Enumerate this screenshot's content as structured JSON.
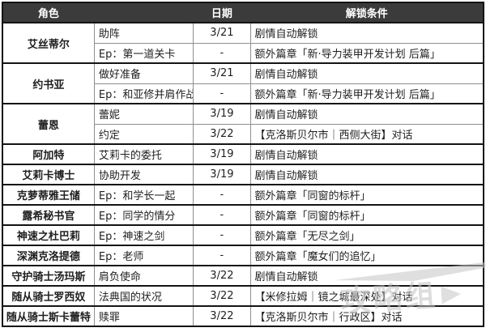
{
  "colors": {
    "header_bg": "#3b3b3b",
    "header_text": "#ffffff",
    "border_dark": "#141414",
    "border_light": "#8f8f8f",
    "cell_text": "#1f1f1f",
    "watermark_gray": "#c6c6c6"
  },
  "watermark": {
    "text": "攻略组"
  },
  "table": {
    "headers": [
      "角色",
      "",
      "日期",
      "解锁条件"
    ],
    "groups": [
      {
        "character": "艾丝蒂尔",
        "rows": [
          {
            "task": "助阵",
            "date": "3/21",
            "condition": "剧情自动解锁"
          },
          {
            "task": "Ep：第一道关卡",
            "date": "-",
            "condition": "额外篇章「新·导力装甲开发计划 后篇」"
          }
        ]
      },
      {
        "character": "约书亚",
        "rows": [
          {
            "task": "做好准备",
            "date": "3/21",
            "condition": "剧情自动解锁"
          },
          {
            "task": "Ep：和亚修并肩作战",
            "date": "-",
            "condition": "额外篇章「新·导力装甲开发计划 后篇」"
          }
        ]
      },
      {
        "character": "蕾恩",
        "rows": [
          {
            "task": "蕾妮",
            "date": "3/19",
            "condition": "剧情自动解锁"
          },
          {
            "task": "约定",
            "date": "3/22",
            "condition": "【克洛斯贝尔市｜西侧大街】对话"
          }
        ]
      },
      {
        "character": "阿加特",
        "rows": [
          {
            "task": "艾莉卡的委托",
            "date": "3/19",
            "condition": "剧情自动解锁"
          }
        ]
      },
      {
        "character": "艾莉卡博士",
        "rows": [
          {
            "task": "协助开发",
            "date": "3/19",
            "condition": "剧情自动解锁"
          }
        ]
      },
      {
        "character": "克萝蒂雅王储",
        "rows": [
          {
            "task": "Ep：和学长一起",
            "date": "-",
            "condition": "额外篇章「同窗的标杆」"
          }
        ]
      },
      {
        "character": "露希秘书官",
        "rows": [
          {
            "task": "Ep：同学的情分",
            "date": "-",
            "condition": "额外篇章「同窗的标杆」"
          }
        ]
      },
      {
        "character": "神速之杜巴莉",
        "rows": [
          {
            "task": "Ep：神速之剑",
            "date": "-",
            "condition": "额外篇章「无尽之剑」"
          }
        ]
      },
      {
        "character": "深渊克洛提德",
        "rows": [
          {
            "task": "Ep：老师",
            "date": "-",
            "condition": "额外篇章「魔女们的追忆」"
          }
        ]
      },
      {
        "character": "守护骑士汤玛斯",
        "rows": [
          {
            "task": "肩负使命",
            "date": "3/22",
            "condition": "剧情自动解锁"
          }
        ]
      },
      {
        "character": "随从骑士罗西奴",
        "rows": [
          {
            "task": "法典国的状况",
            "date": "3/22",
            "condition": "【米修拉姆｜镜之城最深处】对话"
          }
        ]
      },
      {
        "character": "随从骑士斯卡蕾特",
        "rows": [
          {
            "task": "赎罪",
            "date": "3/22",
            "condition": "【克洛斯贝尔市｜行政区】对话"
          }
        ]
      }
    ]
  }
}
